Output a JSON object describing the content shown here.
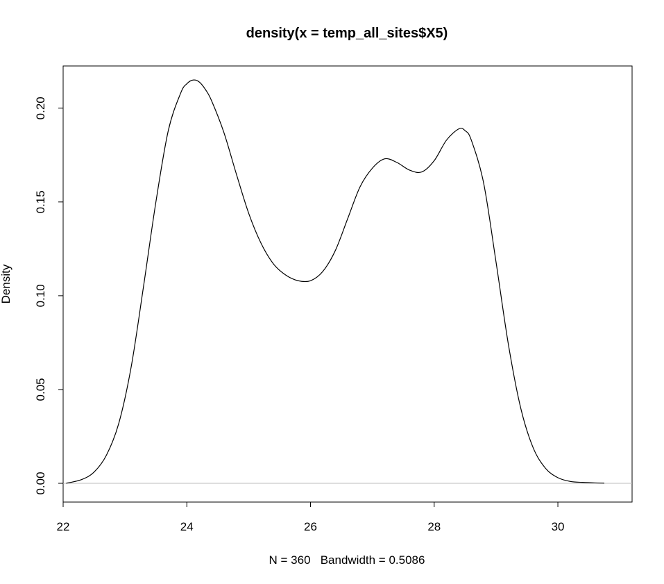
{
  "chart_data": {
    "type": "line",
    "title": "density(x = temp_all_sites$X5)",
    "xlabel": "N = 360   Bandwidth = 0.5086",
    "ylabel": "Density",
    "xlim": [
      22,
      31.2
    ],
    "ylim": [
      -0.01,
      0.2225
    ],
    "xticks": [
      "22",
      "24",
      "26",
      "28",
      "30"
    ],
    "yticks": [
      "0.00",
      "0.05",
      "0.10",
      "0.15",
      "0.20"
    ],
    "baseline": 0,
    "grid": false,
    "series": [
      {
        "x": [
          22.05,
          22.3,
          22.5,
          22.7,
          22.9,
          23.1,
          23.3,
          23.5,
          23.7,
          23.9,
          24.0,
          24.1,
          24.2,
          24.3,
          24.4,
          24.6,
          24.8,
          25.0,
          25.2,
          25.4,
          25.6,
          25.8,
          26.0,
          26.2,
          26.4,
          26.6,
          26.8,
          27.0,
          27.2,
          27.4,
          27.6,
          27.8,
          28.0,
          28.2,
          28.4,
          28.5,
          28.6,
          28.8,
          29.0,
          29.2,
          29.4,
          29.6,
          29.8,
          30.0,
          30.2,
          30.4,
          30.6,
          30.75
        ],
        "y": [
          0.0,
          0.002,
          0.006,
          0.015,
          0.032,
          0.062,
          0.105,
          0.15,
          0.188,
          0.208,
          0.213,
          0.215,
          0.214,
          0.21,
          0.204,
          0.187,
          0.165,
          0.144,
          0.128,
          0.117,
          0.111,
          0.108,
          0.108,
          0.113,
          0.124,
          0.141,
          0.158,
          0.168,
          0.173,
          0.171,
          0.167,
          0.166,
          0.172,
          0.183,
          0.189,
          0.188,
          0.183,
          0.16,
          0.118,
          0.074,
          0.04,
          0.019,
          0.008,
          0.003,
          0.001,
          0.0005,
          0.0002,
          0.0001
        ]
      }
    ]
  }
}
